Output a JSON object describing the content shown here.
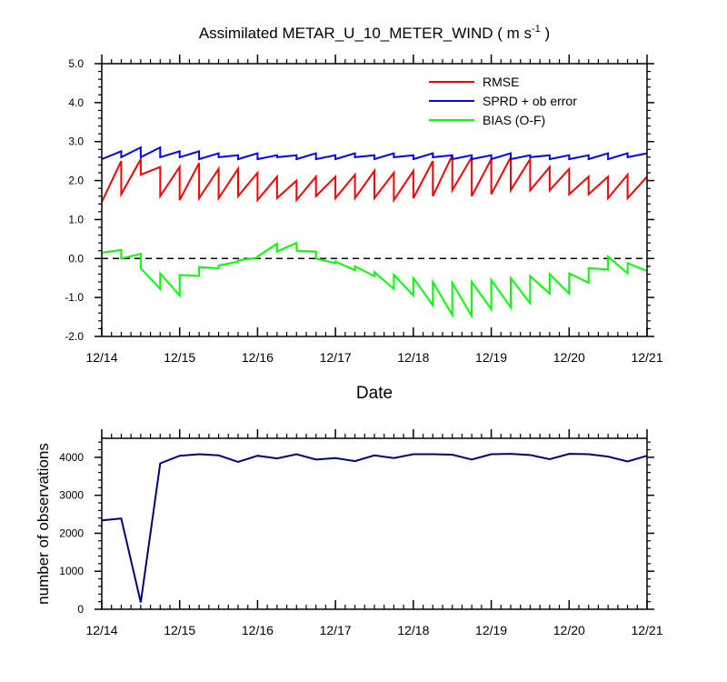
{
  "chart_data": [
    {
      "type": "line",
      "title": "Assimilated METAR_U_10_METER_WIND ( m s",
      "title_unit_sup": "-1",
      "title_close": " )",
      "xlabel": "Date",
      "ylabel": "",
      "xlim": [
        0,
        7
      ],
      "ylim": [
        -2.0,
        5.0
      ],
      "yticks": [
        -2.0,
        -1.0,
        0.0,
        1.0,
        2.0,
        3.0,
        4.0,
        5.0
      ],
      "ytick_labels": [
        "-2.0",
        "-1.0",
        "0.0",
        "1.0",
        "2.0",
        "3.0",
        "4.0",
        "5.0"
      ],
      "xticks": [
        0,
        1,
        2,
        3,
        4,
        5,
        6,
        7
      ],
      "xtick_labels": [
        "12/14",
        "12/15",
        "12/16",
        "12/17",
        "12/18",
        "12/19",
        "12/20",
        "12/21"
      ],
      "zero_line": "dashed",
      "legend_position": "top-right",
      "series": [
        {
          "name": "RMSE",
          "color": "#ff0000",
          "x": [
            0,
            0.25,
            0.25,
            0.5,
            0.5,
            0.75,
            0.75,
            1.0,
            1.0,
            1.25,
            1.25,
            1.5,
            1.5,
            1.75,
            1.75,
            2.0,
            2.0,
            2.25,
            2.25,
            2.5,
            2.5,
            2.75,
            2.75,
            3.0,
            3.0,
            3.25,
            3.25,
            3.5,
            3.5,
            3.75,
            3.75,
            4.0,
            4.0,
            4.25,
            4.25,
            4.5,
            4.5,
            4.75,
            4.75,
            5.0,
            5.0,
            5.25,
            5.25,
            5.5,
            5.5,
            5.75,
            5.75,
            6.0,
            6.0,
            6.25,
            6.25,
            6.5,
            6.5,
            6.75,
            6.75,
            7.0
          ],
          "values": [
            1.45,
            2.5,
            1.65,
            2.55,
            2.15,
            2.35,
            1.6,
            2.35,
            1.5,
            2.45,
            1.55,
            2.3,
            1.55,
            2.3,
            1.6,
            2.2,
            1.5,
            2.1,
            1.55,
            2.0,
            1.5,
            2.1,
            1.6,
            2.1,
            1.55,
            2.15,
            1.55,
            2.25,
            1.55,
            2.2,
            1.5,
            2.25,
            1.55,
            2.5,
            1.6,
            2.65,
            1.75,
            2.6,
            1.6,
            2.55,
            1.65,
            2.6,
            1.75,
            2.55,
            1.75,
            2.35,
            1.75,
            2.3,
            1.65,
            2.1,
            1.65,
            2.1,
            1.55,
            2.15,
            1.55,
            2.1
          ]
        },
        {
          "name": "SPRD + ob error",
          "color": "#0000ff",
          "x": [
            0,
            0.25,
            0.25,
            0.5,
            0.5,
            0.75,
            0.75,
            1.0,
            1.0,
            1.25,
            1.25,
            1.5,
            1.5,
            1.75,
            1.75,
            2.0,
            2.0,
            2.25,
            2.25,
            2.5,
            2.5,
            2.75,
            2.75,
            3.0,
            3.0,
            3.25,
            3.25,
            3.5,
            3.5,
            3.75,
            3.75,
            4.0,
            4.0,
            4.25,
            4.25,
            4.5,
            4.5,
            4.75,
            4.75,
            5.0,
            5.0,
            5.25,
            5.25,
            5.5,
            5.5,
            5.75,
            5.75,
            6.0,
            6.0,
            6.25,
            6.25,
            6.5,
            6.5,
            6.75,
            6.75,
            7.0
          ],
          "values": [
            2.55,
            2.75,
            2.6,
            2.85,
            2.6,
            2.85,
            2.6,
            2.75,
            2.6,
            2.75,
            2.55,
            2.7,
            2.6,
            2.65,
            2.55,
            2.7,
            2.55,
            2.65,
            2.6,
            2.65,
            2.55,
            2.7,
            2.55,
            2.65,
            2.55,
            2.7,
            2.6,
            2.65,
            2.55,
            2.7,
            2.6,
            2.65,
            2.55,
            2.7,
            2.6,
            2.65,
            2.55,
            2.65,
            2.55,
            2.65,
            2.55,
            2.7,
            2.55,
            2.65,
            2.6,
            2.65,
            2.55,
            2.65,
            2.55,
            2.65,
            2.55,
            2.7,
            2.55,
            2.7,
            2.6,
            2.7
          ]
        },
        {
          "name": "BIAS (O-F)",
          "color": "#00ff00",
          "x": [
            0,
            0.25,
            0.25,
            0.5,
            0.5,
            0.75,
            0.75,
            1.0,
            1.0,
            1.25,
            1.25,
            1.5,
            1.5,
            1.75,
            1.75,
            2.0,
            2.0,
            2.25,
            2.25,
            2.5,
            2.5,
            2.75,
            2.75,
            3.0,
            3.0,
            3.25,
            3.25,
            3.5,
            3.5,
            3.75,
            3.75,
            4.0,
            4.0,
            4.25,
            4.25,
            4.5,
            4.5,
            4.75,
            4.75,
            5.0,
            5.0,
            5.25,
            5.25,
            5.5,
            5.5,
            5.75,
            5.75,
            6.0,
            6.0,
            6.25,
            6.25,
            6.5,
            6.5,
            6.75,
            6.75,
            7.0
          ],
          "values": [
            0.15,
            0.22,
            0.0,
            0.12,
            -0.25,
            -0.78,
            -0.38,
            -0.95,
            -0.42,
            -0.45,
            -0.22,
            -0.25,
            -0.18,
            -0.08,
            -0.05,
            0.02,
            0.05,
            0.38,
            0.18,
            0.4,
            0.2,
            0.18,
            0.0,
            -0.12,
            -0.08,
            -0.3,
            -0.2,
            -0.45,
            -0.35,
            -0.78,
            -0.42,
            -0.95,
            -0.5,
            -1.2,
            -0.6,
            -1.45,
            -0.62,
            -1.48,
            -0.6,
            -1.3,
            -0.55,
            -1.25,
            -0.5,
            -1.15,
            -0.45,
            -0.9,
            -0.4,
            -0.9,
            -0.38,
            -0.62,
            -0.25,
            -0.28,
            0.05,
            -0.38,
            -0.12,
            -0.32
          ]
        }
      ]
    },
    {
      "type": "line",
      "title": "",
      "xlabel": "",
      "ylabel": "number of observations",
      "xlim": [
        0,
        7
      ],
      "ylim": [
        0,
        4500
      ],
      "yticks": [
        0,
        1000,
        2000,
        3000,
        4000
      ],
      "ytick_labels": [
        "0",
        "1000",
        "2000",
        "3000",
        "4000"
      ],
      "xticks": [
        0,
        1,
        2,
        3,
        4,
        5,
        6,
        7
      ],
      "xtick_labels": [
        "12/14",
        "12/15",
        "12/16",
        "12/17",
        "12/18",
        "12/19",
        "12/20",
        "12/21"
      ],
      "series": [
        {
          "name": "observations",
          "color": "#000080",
          "x": [
            0,
            0.25,
            0.5,
            0.75,
            1.0,
            1.25,
            1.5,
            1.75,
            2.0,
            2.25,
            2.5,
            2.75,
            3.0,
            3.25,
            3.5,
            3.75,
            4.0,
            4.25,
            4.5,
            4.75,
            5.0,
            5.25,
            5.5,
            5.75,
            6.0,
            6.25,
            6.5,
            6.75,
            7.0
          ],
          "values": [
            2340,
            2390,
            180,
            3840,
            4040,
            4080,
            4050,
            3880,
            4040,
            3970,
            4080,
            3940,
            3980,
            3900,
            4050,
            3980,
            4080,
            4080,
            4070,
            3940,
            4080,
            4090,
            4060,
            3950,
            4090,
            4080,
            4020,
            3890,
            4040
          ]
        }
      ]
    }
  ]
}
